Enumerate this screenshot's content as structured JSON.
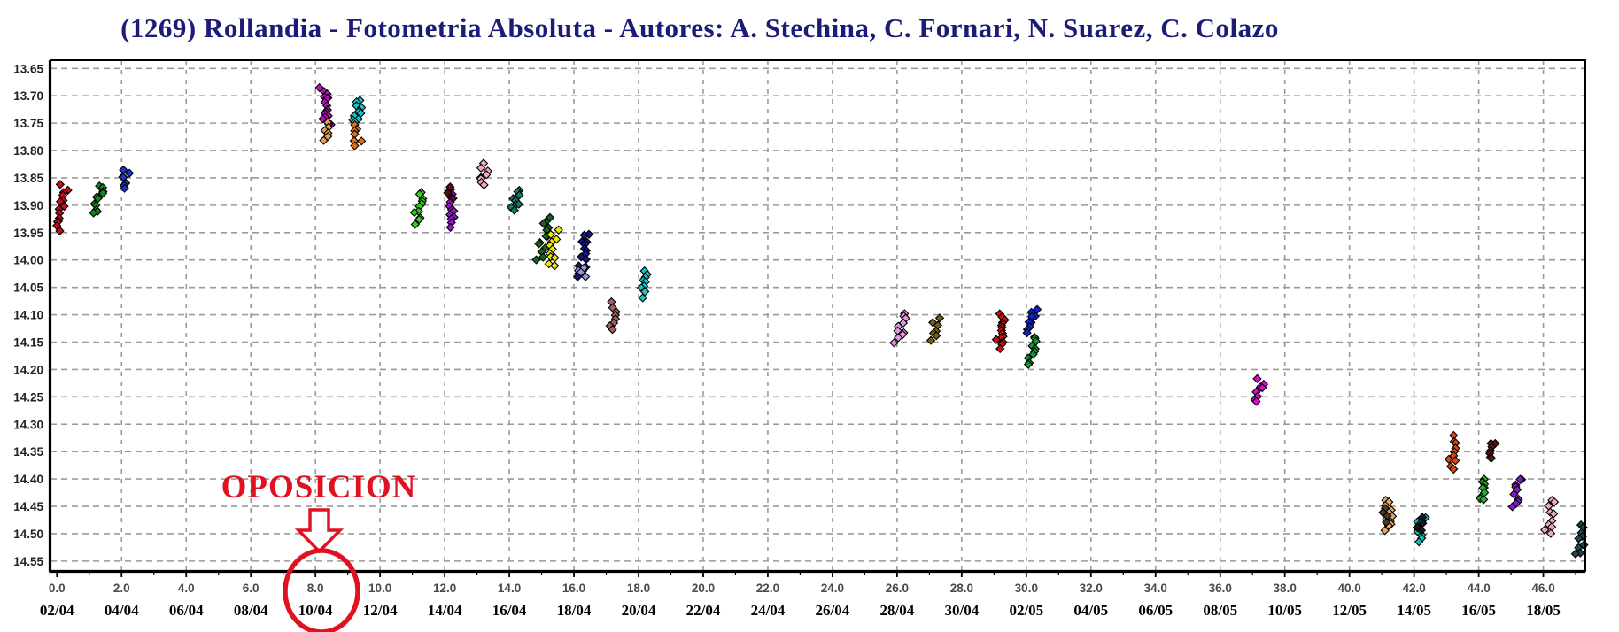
{
  "title": "(1269) Rollandia - Fotometria Absoluta - Autores: A. Stechina, C. Fornari, N. Suarez, C. Colazo",
  "title_color": "#1c1c78",
  "annotation": {
    "text": "OPOSICION",
    "color": "#e01222",
    "circled_label": "10/04"
  },
  "chart_data": {
    "type": "scatter",
    "title": "(1269) Rollandia - Fotometria Absoluta - Autores: A. Stechina, C. Fornari, N. Suarez, C. Colazo",
    "xlabel": "",
    "ylabel": "",
    "grid": "dashed",
    "legend": "none",
    "x_axis": {
      "xlim": [
        -0.2,
        47.3
      ],
      "tick_values": [
        0,
        2,
        4,
        6,
        8,
        10,
        12,
        14,
        16,
        18,
        20,
        22,
        24,
        26,
        28,
        30,
        32,
        34,
        36,
        38,
        40,
        42,
        44,
        46
      ],
      "tick_labels": [
        "0.0",
        "2.0",
        "4.0",
        "6.0",
        "8.0",
        "10.0",
        "12.0",
        "14.0",
        "16.0",
        "18.0",
        "20.0",
        "22.0",
        "24.0",
        "26.0",
        "28.0",
        "30.0",
        "32.0",
        "34.0",
        "36.0",
        "38.0",
        "40.0",
        "42.0",
        "44.0",
        "46.0"
      ],
      "date_labels": [
        "02/04",
        "04/04",
        "06/04",
        "08/04",
        "10/04",
        "12/04",
        "14/04",
        "16/04",
        "18/04",
        "20/04",
        "22/04",
        "24/04",
        "26/04",
        "28/04",
        "30/04",
        "02/05",
        "04/05",
        "06/05",
        "08/05",
        "10/05",
        "12/05",
        "14/05",
        "16/05",
        "18/05"
      ],
      "minor_tick_step": 1
    },
    "y_axis": {
      "ylim": [
        13.635,
        14.568
      ],
      "inverted": true,
      "tick_labels": [
        "13.65",
        "13.70",
        "13.75",
        "13.80",
        "13.85",
        "13.90",
        "13.95",
        "14.00",
        "14.05",
        "14.10",
        "14.15",
        "14.20",
        "14.25",
        "14.30",
        "14.35",
        "14.40",
        "14.45",
        "14.50",
        "14.55"
      ]
    },
    "annotation": {
      "text": "OPOSICION",
      "points_to_x": 8.0,
      "points_to_label": "10/04"
    },
    "series": [
      {
        "x": 0.15,
        "y_min": 13.865,
        "y_max": 13.945,
        "n": 14,
        "color": "#c01020",
        "tilt": 0.15
      },
      {
        "x": 1.3,
        "y_min": 13.862,
        "y_max": 13.915,
        "n": 12,
        "color": "#15881c",
        "tilt": 0.25
      },
      {
        "x": 2.1,
        "y_min": 13.838,
        "y_max": 13.866,
        "n": 7,
        "color": "#2030c8",
        "tilt": 0.1
      },
      {
        "x": 8.3,
        "y_min": 13.685,
        "y_max": 13.755,
        "n": 16,
        "color": "#c408c4",
        "tilt": -0.15
      },
      {
        "x": 8.35,
        "y_min": 13.748,
        "y_max": 13.778,
        "n": 6,
        "color": "#e2a255",
        "tilt": 0
      },
      {
        "x": 9.3,
        "y_min": 13.708,
        "y_max": 13.748,
        "n": 11,
        "color": "#10c8c8",
        "tilt": 0.15
      },
      {
        "x": 9.3,
        "y_min": 13.755,
        "y_max": 13.792,
        "n": 7,
        "color": "#e07018",
        "tilt": 0
      },
      {
        "x": 11.2,
        "y_min": 13.875,
        "y_max": 13.932,
        "n": 11,
        "color": "#35cc22",
        "tilt": 0.15
      },
      {
        "x": 12.2,
        "y_min": 13.872,
        "y_max": 13.938,
        "n": 13,
        "color": "#9914cc",
        "tilt": 0.1
      },
      {
        "x": 12.2,
        "y_min": 13.868,
        "y_max": 13.884,
        "n": 3,
        "color": "#5a0f14",
        "tilt": 0
      },
      {
        "x": 13.2,
        "y_min": 13.825,
        "y_max": 13.862,
        "n": 8,
        "color": "#f2a8b8",
        "tilt": 0.1
      },
      {
        "x": 14.2,
        "y_min": 13.872,
        "y_max": 13.91,
        "n": 9,
        "color": "#157868",
        "tilt": 0.1
      },
      {
        "x": 15.05,
        "y_min": 13.92,
        "y_max": 14.0,
        "n": 13,
        "color": "#14661a",
        "tilt": 0.2
      },
      {
        "x": 15.35,
        "y_min": 13.948,
        "y_max": 14.012,
        "n": 11,
        "color": "#ece800",
        "tilt": 0.1
      },
      {
        "x": 16.3,
        "y_min": 13.952,
        "y_max": 14.03,
        "n": 15,
        "color": "#131488",
        "tilt": 0.15
      },
      {
        "x": 16.25,
        "y_min": 14.012,
        "y_max": 14.032,
        "n": 4,
        "color": "#9b97d8",
        "tilt": 0
      },
      {
        "x": 17.2,
        "y_min": 14.078,
        "y_max": 14.128,
        "n": 8,
        "color": "#a26060",
        "tilt": 0.1
      },
      {
        "x": 18.2,
        "y_min": 14.02,
        "y_max": 14.066,
        "n": 10,
        "color": "#1cc4c4",
        "tilt": 0.1
      },
      {
        "x": 26.1,
        "y_min": 14.098,
        "y_max": 14.15,
        "n": 10,
        "color": "#dc9ade",
        "tilt": 0.15
      },
      {
        "x": 27.2,
        "y_min": 14.108,
        "y_max": 14.146,
        "n": 7,
        "color": "#6e5d12",
        "tilt": 0.1
      },
      {
        "x": 29.2,
        "y_min": 14.098,
        "y_max": 14.162,
        "n": 14,
        "color": "#cc1010",
        "tilt": 0.15
      },
      {
        "x": 30.2,
        "y_min": 14.092,
        "y_max": 14.13,
        "n": 9,
        "color": "#1122cc",
        "tilt": 0.1
      },
      {
        "x": 30.2,
        "y_min": 14.138,
        "y_max": 14.192,
        "n": 10,
        "color": "#13992a",
        "tilt": 0.1
      },
      {
        "x": 37.2,
        "y_min": 14.218,
        "y_max": 14.262,
        "n": 8,
        "color": "#cc12cc",
        "tilt": 0.1
      },
      {
        "x": 41.2,
        "y_min": 14.438,
        "y_max": 14.492,
        "n": 11,
        "color": "#e6a868",
        "tilt": 0.1
      },
      {
        "x": 41.15,
        "y_min": 14.452,
        "y_max": 14.478,
        "n": 4,
        "color": "#4a3a22",
        "tilt": 0
      },
      {
        "x": 42.2,
        "y_min": 14.472,
        "y_max": 14.512,
        "n": 8,
        "color": "#16b8b8",
        "tilt": 0.1
      },
      {
        "x": 42.15,
        "y_min": 14.47,
        "y_max": 14.494,
        "n": 4,
        "color": "#141c24",
        "tilt": 0
      },
      {
        "x": 43.2,
        "y_min": 14.322,
        "y_max": 14.382,
        "n": 10,
        "color": "#dc4414",
        "tilt": 0.1
      },
      {
        "x": 44.35,
        "y_min": 14.332,
        "y_max": 14.365,
        "n": 7,
        "color": "#5a1414",
        "tilt": 0.1
      },
      {
        "x": 44.2,
        "y_min": 14.398,
        "y_max": 14.44,
        "n": 9,
        "color": "#22b822",
        "tilt": 0.1
      },
      {
        "x": 45.2,
        "y_min": 14.398,
        "y_max": 14.452,
        "n": 10,
        "color": "#8818cc",
        "tilt": 0.1
      },
      {
        "x": 46.2,
        "y_min": 14.438,
        "y_max": 14.502,
        "n": 10,
        "color": "#eeaab8",
        "tilt": 0.1
      },
      {
        "x": 47.15,
        "y_min": 14.482,
        "y_max": 14.54,
        "n": 9,
        "color": "#20484a",
        "tilt": 0.1
      }
    ],
    "style": {
      "marker": "diamond",
      "marker_edge_color": "#000000",
      "gridline_color": "#9a9a9a",
      "axis_color": "#000000",
      "x_number_color": "#4a4a4a",
      "x_date_color": "#000000",
      "y_label_color": "#222222"
    }
  }
}
